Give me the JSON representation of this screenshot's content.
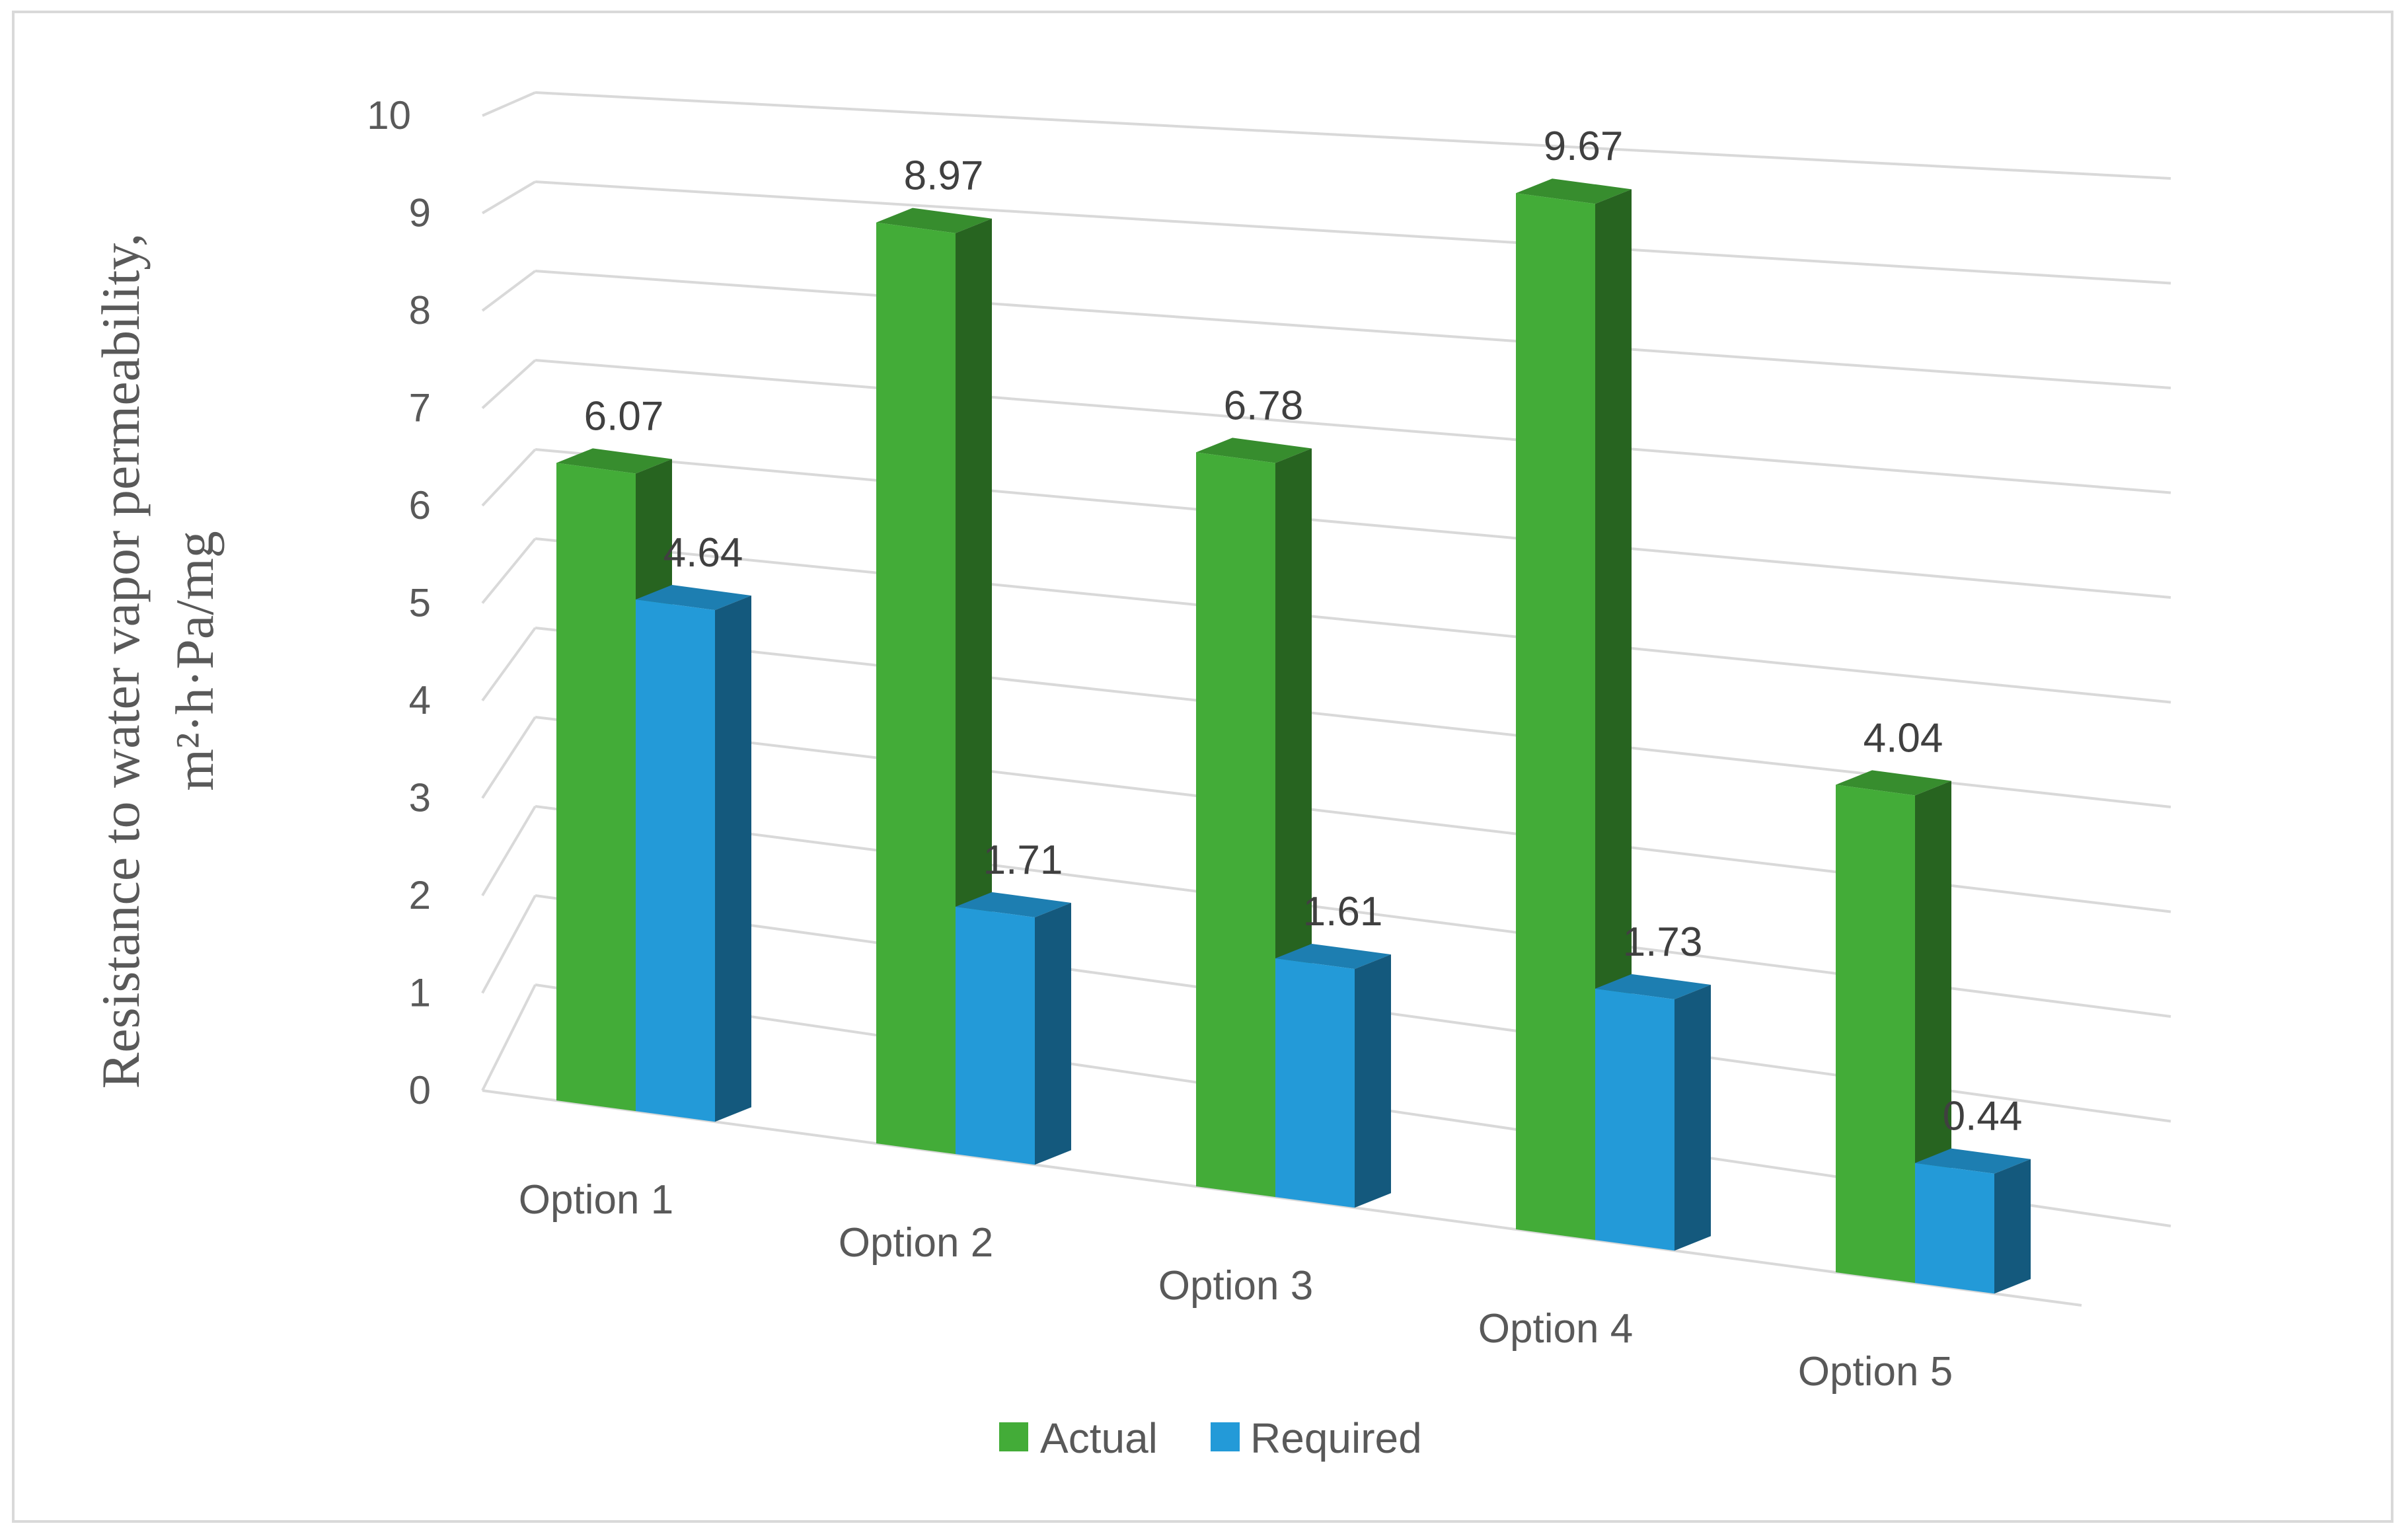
{
  "chart_data": {
    "type": "bar",
    "title": "",
    "xlabel": "",
    "ylabel_line1": "Resistance to water vapor permeability,",
    "ylabel_line2": "m²·h·Pa/mg",
    "categories": [
      "Option 1",
      "Option 2",
      "Option 3",
      "Option 4",
      "Option 5"
    ],
    "series": [
      {
        "name": "Actual",
        "values": [
          6.07,
          8.97,
          6.78,
          9.67,
          4.04
        ],
        "color": "#43ac38"
      },
      {
        "name": "Required",
        "values": [
          4.64,
          1.71,
          1.61,
          1.73,
          0.44
        ],
        "color": "#239ad8"
      }
    ],
    "data_labels": {
      "Actual": [
        "6.07",
        "8.97",
        "6.78",
        "9.67",
        "4.04"
      ],
      "Required": [
        "4.64",
        "1.71",
        "1.61",
        "1.73",
        "0.44"
      ]
    },
    "ylim": [
      0,
      10
    ],
    "yticks": [
      "0",
      "1",
      "2",
      "3",
      "4",
      "5",
      "6",
      "7",
      "8",
      "9",
      "10"
    ],
    "grid": true,
    "legend_position": "bottom",
    "style": "3d-clustered-column"
  }
}
